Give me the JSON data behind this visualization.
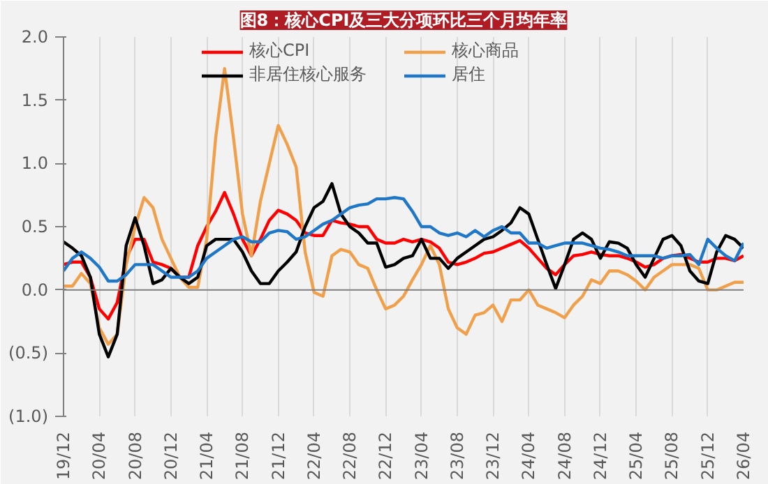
{
  "chart_data": {
    "type": "line",
    "title": "图8：核心CPI及三大分项环比三个月均年率",
    "categories": [
      "19/12",
      null,
      null,
      null,
      "20/04",
      null,
      null,
      null,
      "20/08",
      null,
      null,
      null,
      "20/12",
      null,
      null,
      null,
      "21/04",
      null,
      null,
      null,
      "21/08",
      null,
      null,
      null,
      "21/12",
      null,
      null,
      null,
      "22/04",
      null,
      null,
      null,
      "22/08",
      null,
      null,
      null,
      "22/12",
      null,
      null,
      null,
      "23/04",
      null,
      null,
      null,
      "23/08",
      null,
      null,
      null,
      "23/12",
      null,
      null,
      null,
      "24/04",
      null,
      null,
      null,
      "24/08",
      null,
      null,
      null,
      "24/12",
      null,
      null,
      null,
      "25/04",
      null,
      null,
      null,
      "25/08",
      null,
      null,
      null,
      "25/12",
      null,
      null,
      null,
      "26/04"
    ],
    "series": [
      {
        "name": "核心CPI",
        "color": "#ff0000",
        "values": [
          0.2,
          0.22,
          0.22,
          0.1,
          -0.15,
          -0.23,
          -0.1,
          0.25,
          0.4,
          0.4,
          0.22,
          0.2,
          0.17,
          0.1,
          0.1,
          0.35,
          0.5,
          0.62,
          0.77,
          0.6,
          0.4,
          0.27,
          0.4,
          0.55,
          0.63,
          0.6,
          0.55,
          0.45,
          0.43,
          0.43,
          0.55,
          0.53,
          0.52,
          0.5,
          0.5,
          0.4,
          0.37,
          0.37,
          0.4,
          0.38,
          0.4,
          0.38,
          0.33,
          0.22,
          0.2,
          0.22,
          0.25,
          0.29,
          0.3,
          0.33,
          0.36,
          0.39,
          0.33,
          0.25,
          0.17,
          0.12,
          0.2,
          0.27,
          0.28,
          0.3,
          0.28,
          0.27,
          0.27,
          0.25,
          0.22,
          0.18,
          0.2,
          0.25,
          0.27,
          0.28,
          0.25,
          0.22,
          0.22,
          0.25,
          0.25,
          0.23,
          0.27
        ]
      },
      {
        "name": "核心商品",
        "color": "#f0a04b",
        "values": [
          0.03,
          0.03,
          0.13,
          0.05,
          -0.3,
          -0.43,
          -0.35,
          0.2,
          0.5,
          0.73,
          0.65,
          0.4,
          0.25,
          0.1,
          0.02,
          0.02,
          0.4,
          1.2,
          1.75,
          1.2,
          0.6,
          0.27,
          0.7,
          1.0,
          1.3,
          1.15,
          0.97,
          0.3,
          -0.02,
          -0.05,
          0.27,
          0.32,
          0.3,
          0.2,
          0.17,
          0.0,
          -0.15,
          -0.12,
          -0.05,
          0.08,
          0.2,
          0.35,
          0.2,
          -0.15,
          -0.3,
          -0.35,
          -0.2,
          -0.18,
          -0.12,
          -0.25,
          -0.08,
          -0.08,
          0.0,
          -0.12,
          -0.15,
          -0.18,
          -0.22,
          -0.12,
          -0.05,
          0.08,
          0.05,
          0.15,
          0.15,
          0.12,
          0.07,
          0.0,
          0.1,
          0.15,
          0.2,
          0.2,
          0.2,
          0.17,
          0.0,
          0.0,
          0.03,
          0.06,
          0.06
        ]
      },
      {
        "name": "非居住核心服务",
        "color": "#000000",
        "values": [
          0.38,
          0.33,
          0.27,
          0.1,
          -0.35,
          -0.53,
          -0.35,
          0.35,
          0.57,
          0.35,
          0.05,
          0.08,
          0.17,
          0.1,
          0.05,
          0.1,
          0.35,
          0.4,
          0.4,
          0.4,
          0.3,
          0.15,
          0.05,
          0.05,
          0.15,
          0.22,
          0.3,
          0.5,
          0.65,
          0.7,
          0.84,
          0.6,
          0.5,
          0.45,
          0.37,
          0.37,
          0.18,
          0.2,
          0.25,
          0.27,
          0.4,
          0.25,
          0.25,
          0.17,
          0.25,
          0.3,
          0.35,
          0.4,
          0.42,
          0.47,
          0.53,
          0.65,
          0.6,
          0.4,
          0.2,
          0.01,
          0.2,
          0.4,
          0.45,
          0.4,
          0.25,
          0.38,
          0.37,
          0.33,
          0.2,
          0.1,
          0.25,
          0.4,
          0.43,
          0.35,
          0.15,
          0.07,
          0.05,
          0.3,
          0.43,
          0.4,
          0.33
        ]
      },
      {
        "name": "居住",
        "color": "#1f77c8",
        "values": [
          0.15,
          0.25,
          0.3,
          0.25,
          0.18,
          0.07,
          0.07,
          0.12,
          0.2,
          0.2,
          0.2,
          0.15,
          0.1,
          0.1,
          0.1,
          0.15,
          0.25,
          0.3,
          0.35,
          0.4,
          0.42,
          0.38,
          0.38,
          0.45,
          0.47,
          0.46,
          0.4,
          0.42,
          0.47,
          0.52,
          0.55,
          0.6,
          0.65,
          0.67,
          0.68,
          0.72,
          0.72,
          0.73,
          0.72,
          0.62,
          0.5,
          0.5,
          0.45,
          0.43,
          0.45,
          0.42,
          0.47,
          0.42,
          0.47,
          0.5,
          0.45,
          0.45,
          0.37,
          0.37,
          0.33,
          0.35,
          0.37,
          0.37,
          0.37,
          0.35,
          0.33,
          0.32,
          0.3,
          0.27,
          0.27,
          0.27,
          0.27,
          0.25,
          0.27,
          0.27,
          0.28,
          0.2,
          0.4,
          0.33,
          0.27,
          0.23,
          0.37
        ]
      }
    ],
    "ylim": [
      -1.0,
      2.0
    ],
    "yticks": [
      {
        "value": -1.0,
        "label": "(1.0)"
      },
      {
        "value": -0.5,
        "label": "(0.5)"
      },
      {
        "value": 0.0,
        "label": "0.0"
      },
      {
        "value": 0.5,
        "label": "0.5"
      },
      {
        "value": 1.0,
        "label": "1.0"
      },
      {
        "value": 1.5,
        "label": "1.5"
      },
      {
        "value": 2.0,
        "label": "2.0"
      }
    ],
    "grid": "x",
    "legend": "top",
    "line_style": "solid"
  }
}
